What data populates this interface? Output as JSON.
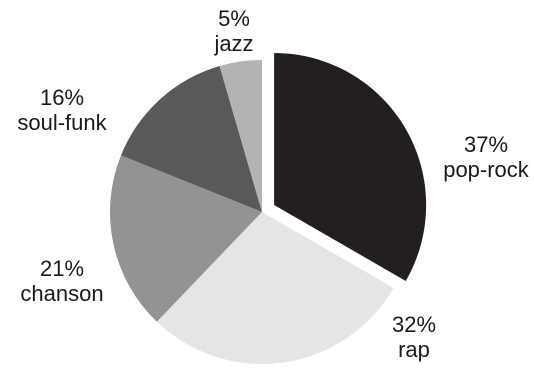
{
  "chart_data": {
    "type": "pie",
    "title": "",
    "slices": [
      {
        "label": "pop-rock",
        "value": 37,
        "value_label": "37%",
        "color": "#231f20",
        "exploded": true
      },
      {
        "label": "rap",
        "value": 32,
        "value_label": "32%",
        "color": "#e5e5e5",
        "exploded": false
      },
      {
        "label": "chanson",
        "value": 21,
        "value_label": "21%",
        "color": "#939393",
        "exploded": false
      },
      {
        "label": "soul-funk",
        "value": 16,
        "value_label": "16%",
        "color": "#595959",
        "exploded": false
      },
      {
        "label": "jazz",
        "value": 5,
        "value_label": "5%",
        "color": "#b3b3b3",
        "exploded": false
      }
    ],
    "start_angle_deg": 0,
    "direction": "clockwise",
    "legend": "none"
  }
}
